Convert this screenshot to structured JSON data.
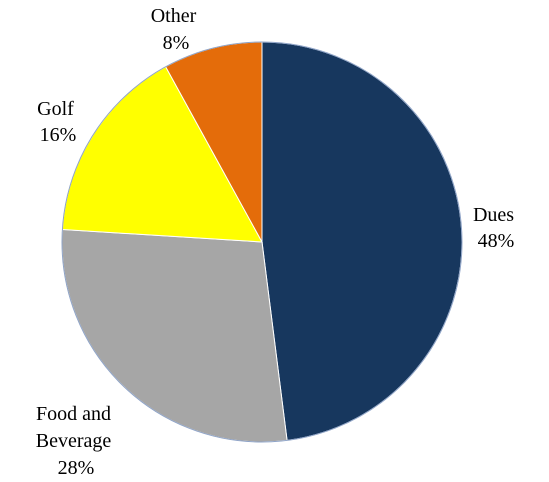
{
  "chart_data": {
    "type": "pie",
    "title": "",
    "slices": [
      {
        "label": "Dues",
        "value": 48,
        "percent_label": "48%",
        "color": "#17375e"
      },
      {
        "label": "Food and Beverage",
        "value": 28,
        "percent_label": "28%",
        "color": "#a6a6a6"
      },
      {
        "label": "Golf",
        "value": 16,
        "percent_label": "16%",
        "color": "#ffff00"
      },
      {
        "label": "Other",
        "value": 8,
        "percent_label": "8%",
        "color": "#e46c0a"
      }
    ],
    "start_angle_deg": 0,
    "direction": "clockwise",
    "legend": "none"
  }
}
